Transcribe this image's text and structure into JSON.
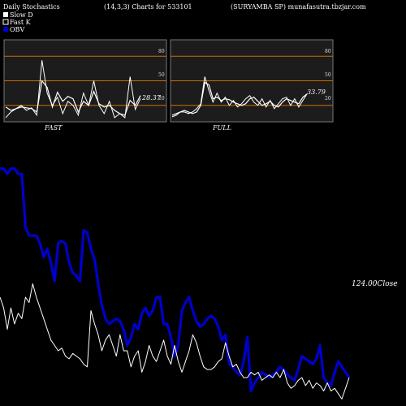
{
  "header": {
    "left": "Daily Stochastics",
    "center": "(14,3,3) Charts for 533101",
    "right": "(SURYAMBA SP) munafasutra.tbzjar.com"
  },
  "legend": {
    "items": [
      {
        "label": "Slow  D",
        "color": "#ffffff"
      },
      {
        "label": "Fast K",
        "color": "#ffffff"
      },
      {
        "label": "OBV",
        "color": "#0000cc"
      }
    ]
  },
  "colors": {
    "background": "#000000",
    "panel_bg": "#1c1c1c",
    "level_line": "#c87000",
    "obv": "#0000cc",
    "price": "#ffffff"
  },
  "chart_data": [
    {
      "type": "line",
      "name": "FAST",
      "title": "FAST",
      "ylim": [
        0,
        100
      ],
      "levels": [
        80,
        50,
        20
      ],
      "tick_labels": [
        "80",
        "50",
        "20"
      ],
      "last_value_label": "28.37",
      "series": [
        {
          "values": [
            18,
            14,
            16,
            18,
            17,
            16,
            12,
            50,
            42,
            18,
            36,
            25,
            31,
            28,
            12,
            25,
            20,
            37,
            22,
            18,
            20,
            14,
            10,
            8,
            26,
            20,
            32
          ]
        },
        {
          "values": [
            5,
            12,
            16,
            20,
            14,
            17,
            8,
            75,
            35,
            20,
            30,
            10,
            25,
            20,
            8,
            35,
            20,
            50,
            20,
            10,
            25,
            5,
            10,
            5,
            55,
            15,
            28.37
          ]
        }
      ]
    },
    {
      "type": "line",
      "name": "FULL",
      "title": "FULL",
      "ylim": [
        0,
        100
      ],
      "levels": [
        80,
        50,
        20
      ],
      "tick_labels": [
        "80",
        "50",
        "20"
      ],
      "last_value_label": "33.79",
      "series": [
        {
          "values": [
            8,
            10,
            12,
            14,
            12,
            10,
            12,
            20,
            48,
            45,
            28,
            30,
            26,
            28,
            27,
            24,
            22,
            20,
            22,
            28,
            30,
            25,
            20,
            22,
            25,
            20,
            18,
            24,
            28,
            26,
            24,
            22,
            30,
            33.79
          ]
        },
        {
          "values": [
            6,
            8,
            12,
            12,
            10,
            12,
            16,
            22,
            55,
            38,
            24,
            35,
            24,
            30,
            20,
            26,
            18,
            22,
            28,
            32,
            24,
            20,
            28,
            18,
            26,
            16,
            22,
            28,
            30,
            20,
            28,
            18,
            26,
            33.79
          ]
        }
      ]
    },
    {
      "type": "line",
      "name": "OBV and Close",
      "last_value_label": "124.00Close",
      "series": [
        {
          "name": "OBV",
          "values": [
            0.88,
            0.88,
            0.86,
            0.88,
            0.88,
            0.86,
            0.86,
            0.66,
            0.63,
            0.63,
            0.63,
            0.6,
            0.55,
            0.58,
            0.53,
            0.46,
            0.6,
            0.61,
            0.6,
            0.53,
            0.49,
            0.48,
            0.46,
            0.65,
            0.64,
            0.58,
            0.54,
            0.45,
            0.37,
            0.32,
            0.3,
            0.31,
            0.32,
            0.31,
            0.28,
            0.22,
            0.25,
            0.3,
            0.28,
            0.34,
            0.36,
            0.33,
            0.35,
            0.4,
            0.4,
            0.3,
            0.3,
            0.25,
            0.18,
            0.22,
            0.35,
            0.38,
            0.4,
            0.35,
            0.31,
            0.29,
            0.3,
            0.32,
            0.33,
            0.32,
            0.29,
            0.24,
            0.26,
            0.15,
            0.14,
            0.12,
            0.11,
            0.16,
            0.25,
            0.05,
            0.08,
            0.1,
            0.12,
            0.11,
            0.1,
            0.11,
            0.12,
            0.14,
            0.13,
            0.11,
            0.1,
            0.09,
            0.13,
            0.18,
            0.17,
            0.16,
            0.15,
            0.17,
            0.22,
            0.1,
            0.08,
            0.07,
            0.12,
            0.16,
            0.14,
            0.12,
            0.1
          ]
        },
        {
          "name": "Close",
          "values": [
            0.4,
            0.36,
            0.28,
            0.36,
            0.3,
            0.34,
            0.32,
            0.4,
            0.38,
            0.45,
            0.4,
            0.36,
            0.32,
            0.28,
            0.24,
            0.22,
            0.2,
            0.21,
            0.18,
            0.17,
            0.19,
            0.18,
            0.17,
            0.15,
            0.14,
            0.35,
            0.3,
            0.26,
            0.2,
            0.24,
            0.26,
            0.22,
            0.18,
            0.26,
            0.2,
            0.2,
            0.14,
            0.18,
            0.2,
            0.12,
            0.16,
            0.22,
            0.18,
            0.16,
            0.2,
            0.24,
            0.18,
            0.15,
            0.22,
            0.16,
            0.12,
            0.16,
            0.2,
            0.26,
            0.23,
            0.18,
            0.14,
            0.13,
            0.13,
            0.14,
            0.16,
            0.17,
            0.23,
            0.18,
            0.14,
            0.15,
            0.12,
            0.1,
            0.1,
            0.12,
            0.11,
            0.12,
            0.09,
            0.1,
            0.11,
            0.1,
            0.12,
            0.1,
            0.13,
            0.08,
            0.06,
            0.07,
            0.09,
            0.1,
            0.07,
            0.09,
            0.06,
            0.08,
            0.07,
            0.05,
            0.08,
            0.05,
            0.06,
            0.04,
            0.02,
            0.06,
            0.1
          ]
        }
      ]
    }
  ]
}
